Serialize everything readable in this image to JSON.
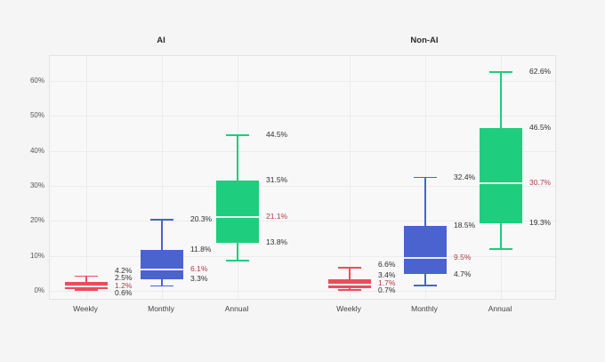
{
  "figure": {
    "background_color": "#f5f5f5",
    "plot_background_color": "#f8f8f8",
    "grid_color": "#ececec",
    "tick_text_color": "#555555",
    "label_text_color": "#2f2f2f",
    "median_label_color": "#b23a48"
  },
  "chart_data": {
    "type": "box",
    "title": "",
    "xlabel": "",
    "ylabel": "",
    "ylim": [
      0,
      67
    ],
    "grid": true,
    "yticks": [
      {
        "value": 0,
        "label": "0%"
      },
      {
        "value": 10,
        "label": "10%"
      },
      {
        "value": 20,
        "label": "20%"
      },
      {
        "value": 30,
        "label": "30%"
      },
      {
        "value": 40,
        "label": "40%"
      },
      {
        "value": 50,
        "label": "50%"
      },
      {
        "value": 60,
        "label": "60%"
      }
    ],
    "panels": [
      {
        "title": "AI",
        "boxes": [
          {
            "category": "Weekly",
            "color": "#ed4c5c",
            "stats": {
              "whisker_high": 4.2,
              "q3": 2.5,
              "median": 1.2,
              "q1": 0.6,
              "whisker_low": 0.2
            },
            "value_labels": {
              "whisker_high": "4.2%",
              "q3": "2.5%",
              "median": "1.2%",
              "q1": "0.6%"
            }
          },
          {
            "category": "Monthly",
            "color": "#4a63ce",
            "stats": {
              "whisker_high": 20.3,
              "q3": 11.8,
              "median": 6.1,
              "q1": 3.3,
              "whisker_low": 1.4
            },
            "value_labels": {
              "whisker_high": "20.3%",
              "q3": "11.8%",
              "median": "6.1%",
              "q1": "3.3%"
            }
          },
          {
            "category": "Annual",
            "color": "#1ecd7d",
            "stats": {
              "whisker_high": 44.5,
              "q3": 31.5,
              "median": 21.1,
              "q1": 13.8,
              "whisker_low": 8.6
            },
            "value_labels": {
              "whisker_high": "44.5%",
              "q3": "31.5%",
              "median": "21.1%",
              "q1": "13.8%"
            }
          }
        ]
      },
      {
        "title": "Non-AI",
        "boxes": [
          {
            "category": "Weekly",
            "color": "#ed4c5c",
            "stats": {
              "whisker_high": 6.6,
              "q3": 3.4,
              "median": 1.7,
              "q1": 0.7,
              "whisker_low": 0.2
            },
            "value_labels": {
              "whisker_high": "6.6%",
              "q3": "3.4%",
              "median": "1.7%",
              "q1": "0.7%"
            }
          },
          {
            "category": "Monthly",
            "color": "#4a63ce",
            "stats": {
              "whisker_high": 32.4,
              "q3": 18.5,
              "median": 9.5,
              "q1": 4.7,
              "whisker_low": 1.5
            },
            "value_labels": {
              "whisker_high": "32.4%",
              "q3": "18.5%",
              "median": "9.5%",
              "q1": "4.7%"
            }
          },
          {
            "category": "Annual",
            "color": "#1ecd7d",
            "stats": {
              "whisker_high": 62.6,
              "q3": 46.5,
              "median": 30.7,
              "q1": 19.3,
              "whisker_low": 12.0
            },
            "value_labels": {
              "whisker_high": "62.6%",
              "q3": "46.5%",
              "median": "30.7%",
              "q1": "19.3%"
            }
          }
        ]
      }
    ]
  }
}
